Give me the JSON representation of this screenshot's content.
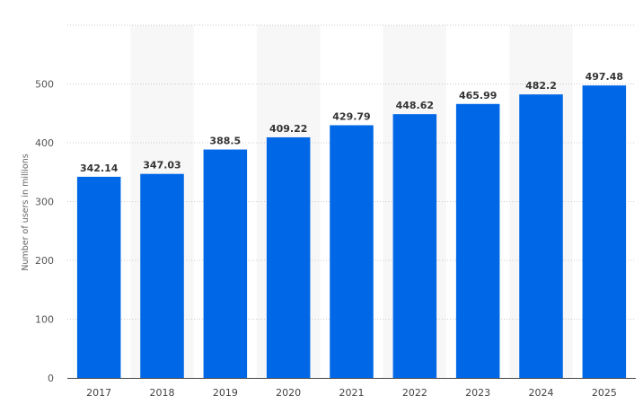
{
  "chart_data": {
    "type": "bar",
    "categories": [
      "2017",
      "2018",
      "2019",
      "2020",
      "2021",
      "2022",
      "2023",
      "2024",
      "2025"
    ],
    "values": [
      342.14,
      347.03,
      388.5,
      409.22,
      429.79,
      448.62,
      465.99,
      482.2,
      497.48
    ],
    "data_labels": [
      "342.14",
      "347.03",
      "388.5",
      "409.22",
      "429.79",
      "448.62",
      "465.99",
      "482.2",
      "497.48"
    ],
    "title": "",
    "xlabel": "",
    "ylabel": "Number of users in millions",
    "ylim": [
      0,
      600
    ],
    "yticks": [
      "0",
      "100",
      "200",
      "300",
      "400",
      "500"
    ],
    "grid": true,
    "colors": {
      "bar": "#0068e6",
      "band": "#f7f7f7",
      "grid": "#cccccc",
      "axis": "#555555"
    }
  }
}
